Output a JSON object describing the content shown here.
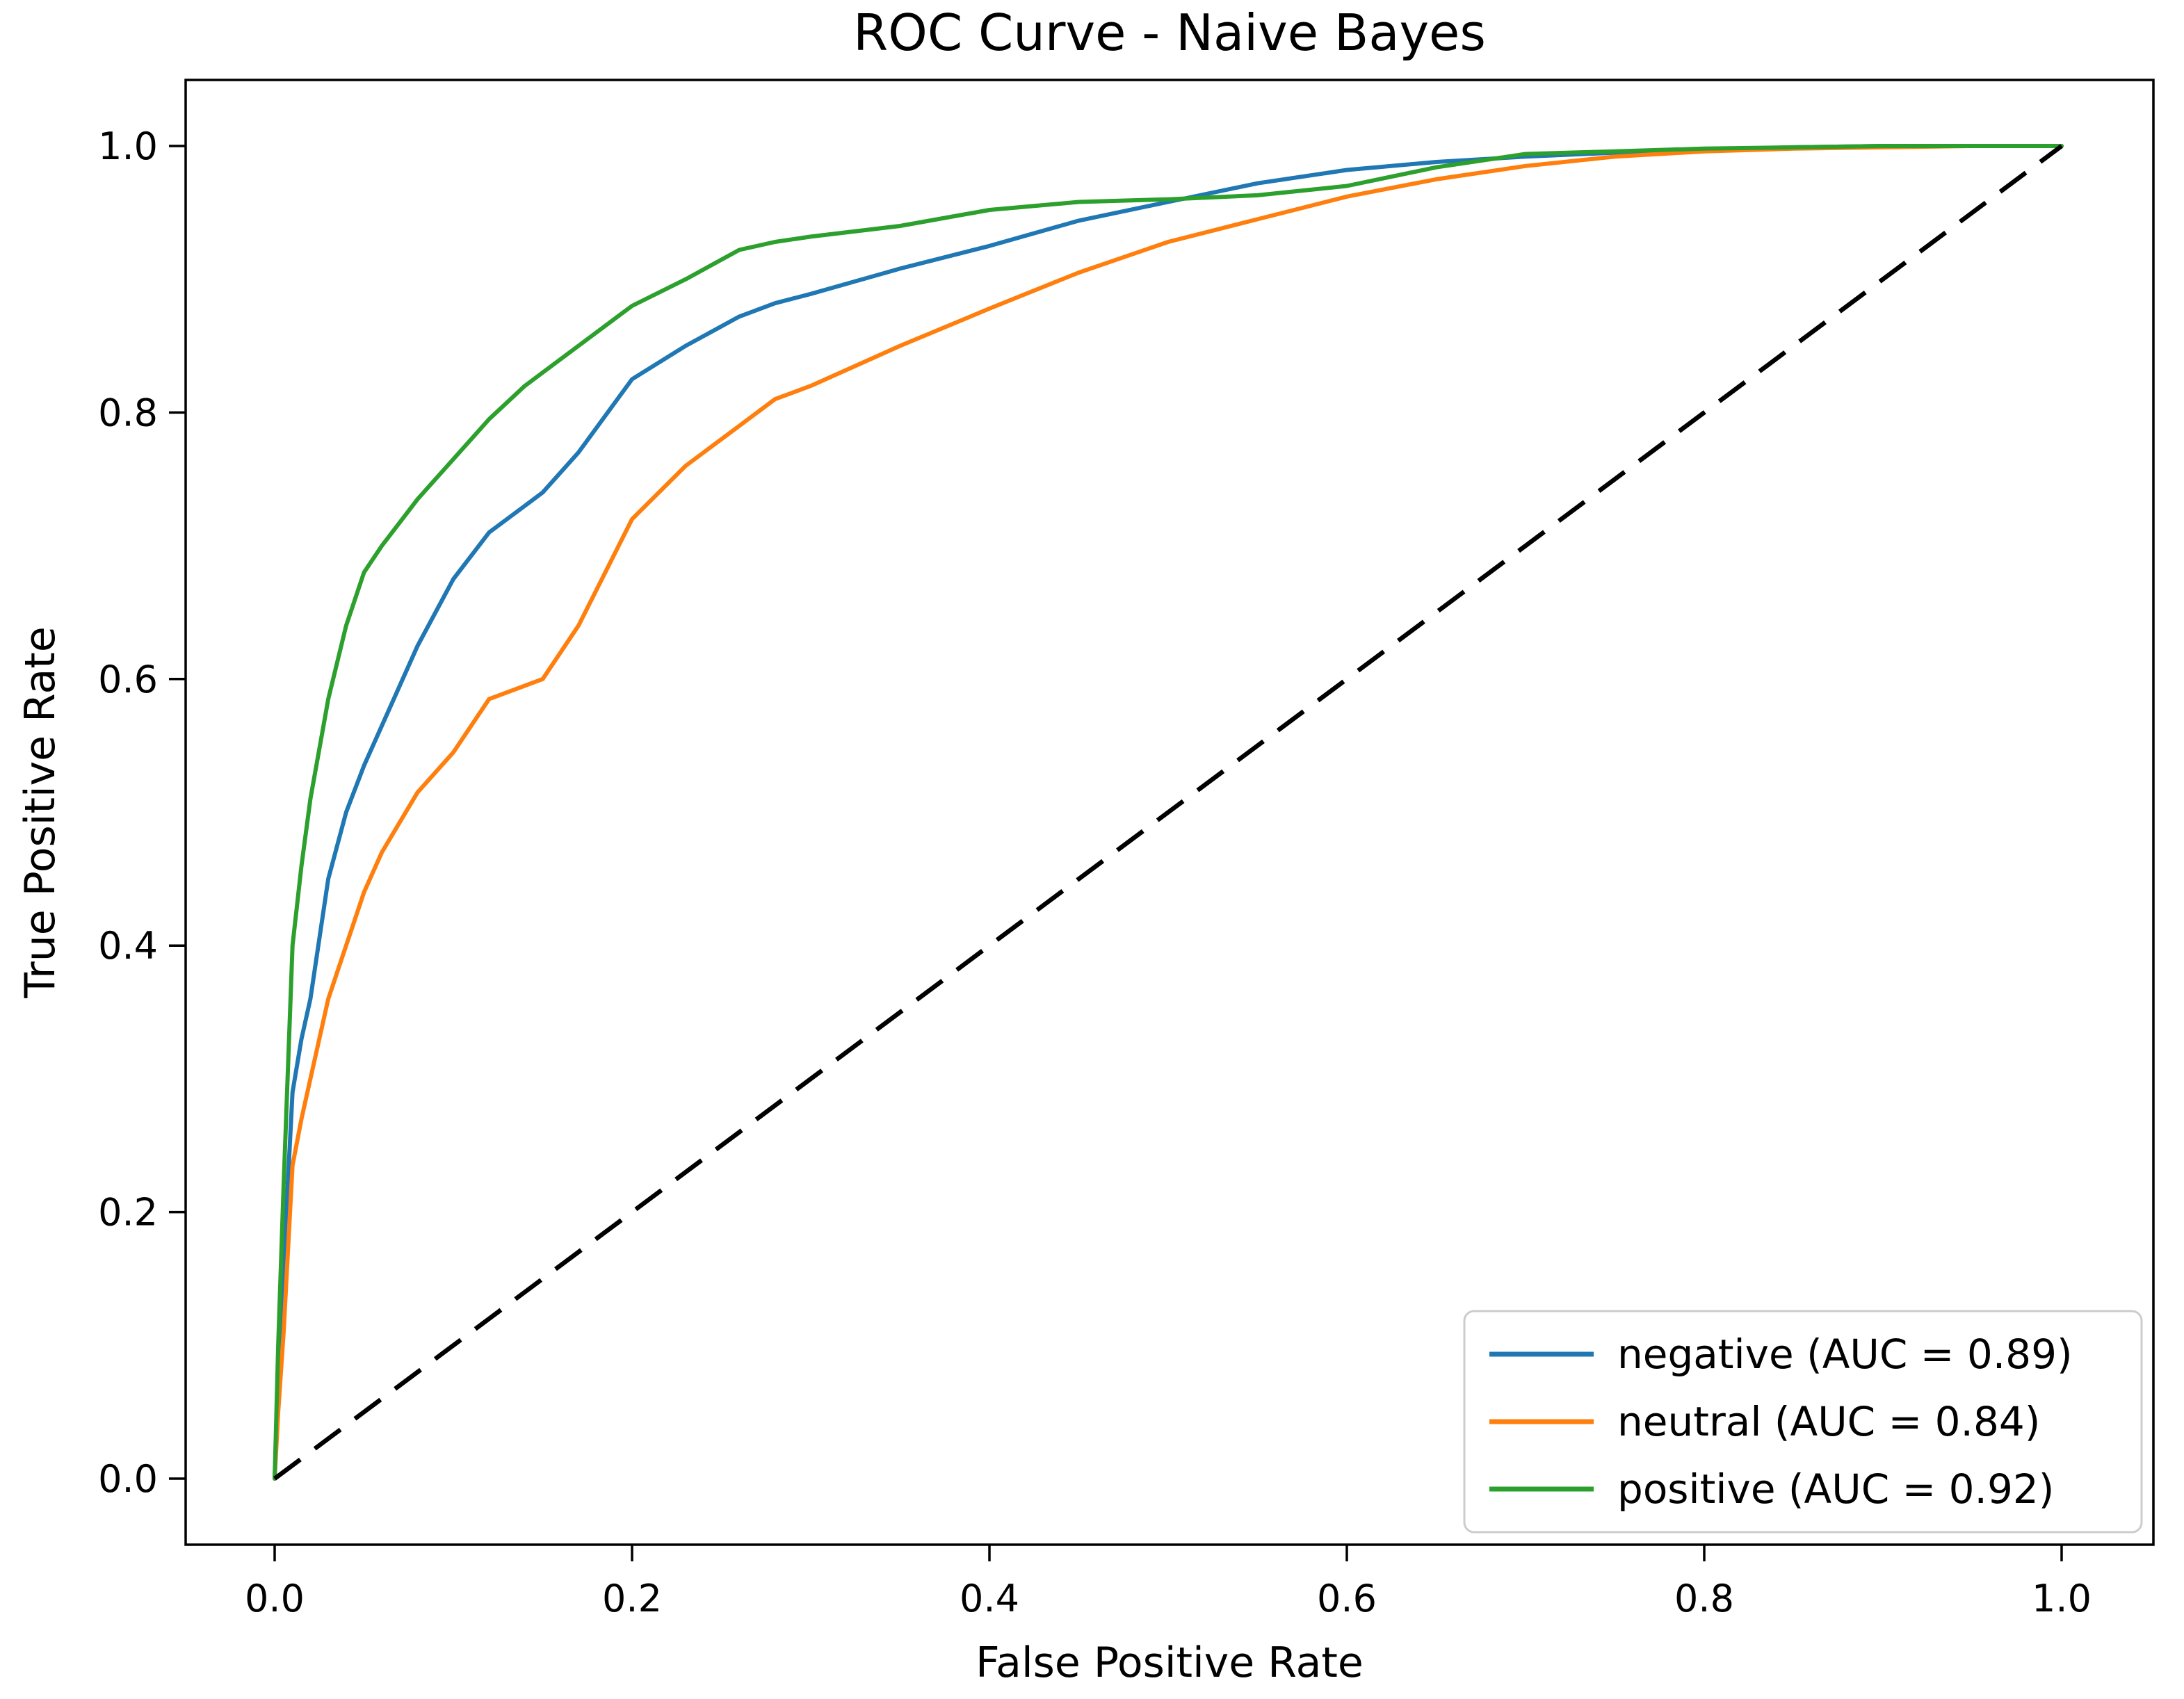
{
  "figure": {
    "title": "ROC Curve - Naive Bayes",
    "xlabel": "False Positive Rate",
    "ylabel": "True Positive Rate"
  },
  "chart_data": {
    "type": "line",
    "title": "ROC Curve - Naive Bayes",
    "xlabel": "False Positive Rate",
    "ylabel": "True Positive Rate",
    "xlim": [
      0.0,
      1.0
    ],
    "ylim": [
      0.0,
      1.0
    ],
    "x_ticks": [
      0.0,
      0.2,
      0.4,
      0.6,
      0.8,
      1.0
    ],
    "y_ticks": [
      0.0,
      0.2,
      0.4,
      0.6,
      0.8,
      1.0
    ],
    "grid": false,
    "legend_position": "lower right",
    "x": [
      0,
      0.002,
      0.005,
      0.01,
      0.015,
      0.02,
      0.03,
      0.04,
      0.05,
      0.06,
      0.08,
      0.1,
      0.12,
      0.14,
      0.15,
      0.17,
      0.2,
      0.23,
      0.26,
      0.28,
      0.3,
      0.35,
      0.4,
      0.45,
      0.5,
      0.55,
      0.6,
      0.65,
      0.7,
      0.75,
      0.8,
      0.85,
      0.9,
      0.95,
      1.0
    ],
    "series": [
      {
        "name": "negative",
        "label": "negative (AUC = 0.89)",
        "auc": 0.89,
        "color": "#1f77b4",
        "values": [
          0,
          0.07,
          0.16,
          0.29,
          0.33,
          0.36,
          0.45,
          0.5,
          0.535,
          0.565,
          0.625,
          0.675,
          0.71,
          0.73,
          0.74,
          0.77,
          0.825,
          0.85,
          0.872,
          0.882,
          0.889,
          0.908,
          0.925,
          0.944,
          0.958,
          0.972,
          0.982,
          0.988,
          0.992,
          0.995,
          0.997,
          0.999,
          1.0,
          1.0,
          1.0
        ]
      },
      {
        "name": "neutral",
        "label": "neutral (AUC = 0.84)",
        "auc": 0.84,
        "color": "#ff7f0e",
        "values": [
          0,
          0.05,
          0.11,
          0.235,
          0.27,
          0.3,
          0.36,
          0.4,
          0.44,
          0.47,
          0.515,
          0.545,
          0.585,
          0.595,
          0.6,
          0.64,
          0.72,
          0.76,
          0.79,
          0.81,
          0.82,
          0.85,
          0.878,
          0.905,
          0.928,
          0.945,
          0.962,
          0.975,
          0.985,
          0.992,
          0.996,
          0.998,
          0.999,
          1.0,
          1.0
        ]
      },
      {
        "name": "positive",
        "label": "positive (AUC = 0.92)",
        "auc": 0.92,
        "color": "#2ca02c",
        "values": [
          0,
          0.1,
          0.22,
          0.4,
          0.46,
          0.51,
          0.585,
          0.64,
          0.68,
          0.7,
          0.735,
          0.765,
          0.795,
          0.82,
          0.83,
          0.85,
          0.88,
          0.9,
          0.922,
          0.928,
          0.932,
          0.94,
          0.952,
          0.958,
          0.96,
          0.963,
          0.97,
          0.984,
          0.994,
          0.996,
          0.998,
          0.999,
          1.0,
          1.0,
          1.0
        ]
      }
    ],
    "reference_line": {
      "name": "chance-diagonal",
      "style": "dashed",
      "color": "#000000",
      "from": [
        0,
        0
      ],
      "to": [
        1,
        1
      ]
    }
  }
}
